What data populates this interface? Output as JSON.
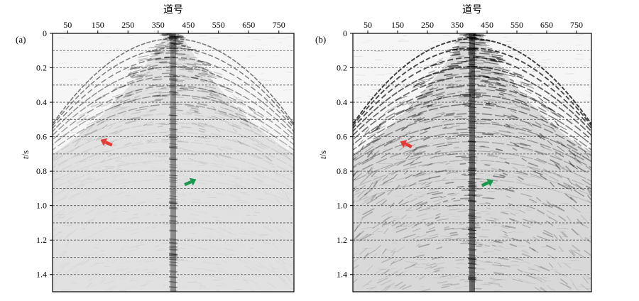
{
  "figure": {
    "panels": [
      {
        "panel_label": "(a)",
        "xlabel": "道号",
        "ylabel_var": "t",
        "ylabel_unit": "/s",
        "x_ticks": [
          "50",
          "150",
          "250",
          "350",
          "450",
          "550",
          "650",
          "750"
        ],
        "y_ticks": [
          "0",
          "0.2",
          "0.4",
          "0.6",
          "0.8",
          "1.0",
          "1.2",
          "1.4"
        ],
        "arrows": [
          {
            "name": "red-arrow",
            "color": "#e53935",
            "trace": 180,
            "time": 0.635
          },
          {
            "name": "green-arrow",
            "color": "#1a9850",
            "trace": 455,
            "time": 0.865
          }
        ]
      },
      {
        "panel_label": "(b)",
        "xlabel": "道号",
        "ylabel_var": "t",
        "ylabel_unit": "/s",
        "x_ticks": [
          "50",
          "150",
          "250",
          "350",
          "450",
          "550",
          "650",
          "750"
        ],
        "y_ticks": [
          "0",
          "0.2",
          "0.4",
          "0.6",
          "0.8",
          "1.0",
          "1.2",
          "1.4"
        ],
        "arrows": [
          {
            "name": "red-arrow",
            "color": "#e53935",
            "trace": 180,
            "time": 0.645
          },
          {
            "name": "green-arrow",
            "color": "#1a9850",
            "trace": 450,
            "time": 0.87
          }
        ]
      }
    ]
  },
  "chart_data": [
    {
      "type": "heatmap",
      "description_source": "seismic shot gather (grayscale wiggle density)",
      "xlabel": "道号",
      "ylabel": "t/s",
      "x_ticks": [
        50,
        150,
        250,
        350,
        450,
        550,
        650,
        750
      ],
      "y_ticks": [
        0,
        0.2,
        0.4,
        0.6,
        0.8,
        1.0,
        1.2,
        1.4
      ],
      "xlim": [
        0,
        800
      ],
      "ylim": [
        1.5,
        0
      ],
      "apex_trace": 400,
      "first_break_end_time": 0.7,
      "energy_strength": 0.55,
      "grid": "horizontal dashed every 0.1 s"
    },
    {
      "type": "heatmap",
      "description_source": "seismic shot gather (grayscale wiggle density)",
      "xlabel": "道号",
      "ylabel": "t/s",
      "x_ticks": [
        50,
        150,
        250,
        350,
        450,
        550,
        650,
        750
      ],
      "y_ticks": [
        0,
        0.2,
        0.4,
        0.6,
        0.8,
        1.0,
        1.2,
        1.4
      ],
      "xlim": [
        0,
        800
      ],
      "ylim": [
        1.5,
        0
      ],
      "apex_trace": 400,
      "first_break_end_time": 0.7,
      "energy_strength": 1.0,
      "grid": "horizontal dashed every 0.1 s"
    }
  ],
  "colors": {
    "frame": "#000000",
    "grid": "#555555",
    "event_dark": "#1a1a1a",
    "red_arrow": "#e53935",
    "green_arrow": "#1a9850"
  }
}
